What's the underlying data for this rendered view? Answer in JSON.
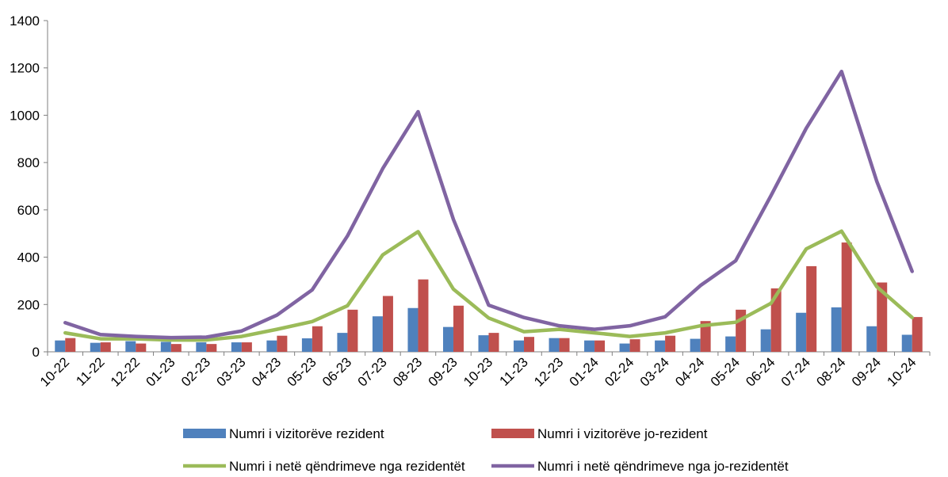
{
  "chart_data": {
    "type": "bar",
    "categories": [
      "10-22",
      "11-22",
      "12-22",
      "01-23",
      "02-23",
      "03-23",
      "04-23",
      "05-23",
      "06-23",
      "07-23",
      "08-23",
      "09-23",
      "10-23",
      "11-23",
      "12-23",
      "01-24",
      "02-24",
      "03-24",
      "04-24",
      "05-24",
      "06-24",
      "07-24",
      "08-24",
      "09-24",
      "10-24"
    ],
    "ylim": [
      0,
      1400
    ],
    "yticks": [
      0,
      200,
      400,
      600,
      800,
      1000,
      1200,
      1400
    ],
    "grid": false,
    "legend_position": "bottom",
    "title": "",
    "xlabel": "",
    "ylabel": "",
    "series": [
      {
        "name": "Numri i vizitorëve rezident",
        "type": "bar",
        "color": "#4f81bd",
        "values": [
          48,
          38,
          45,
          42,
          40,
          40,
          48,
          57,
          80,
          150,
          185,
          105,
          70,
          48,
          58,
          48,
          35,
          48,
          55,
          65,
          95,
          165,
          188,
          108,
          72
        ]
      },
      {
        "name": "Numri i vizitorëve jo-rezident",
        "type": "bar",
        "color": "#c0504d",
        "values": [
          58,
          40,
          35,
          33,
          33,
          40,
          68,
          108,
          178,
          236,
          306,
          195,
          80,
          63,
          58,
          48,
          53,
          68,
          130,
          178,
          268,
          362,
          462,
          293,
          147
        ]
      },
      {
        "name": "Numri i netë qëndrimeve nga rezidentët",
        "type": "line",
        "color": "#9bbb59",
        "values": [
          80,
          55,
          55,
          50,
          50,
          65,
          95,
          128,
          195,
          410,
          508,
          265,
          143,
          85,
          95,
          80,
          65,
          80,
          110,
          125,
          205,
          435,
          510,
          275,
          145
        ]
      },
      {
        "name": "Numri i netë qëndrimeve nga jo-rezidentët",
        "type": "line",
        "color": "#8064a2",
        "values": [
          123,
          73,
          65,
          60,
          62,
          88,
          155,
          262,
          490,
          775,
          1015,
          560,
          197,
          145,
          110,
          95,
          110,
          148,
          280,
          385,
          660,
          945,
          1185,
          720,
          340
        ]
      }
    ]
  }
}
